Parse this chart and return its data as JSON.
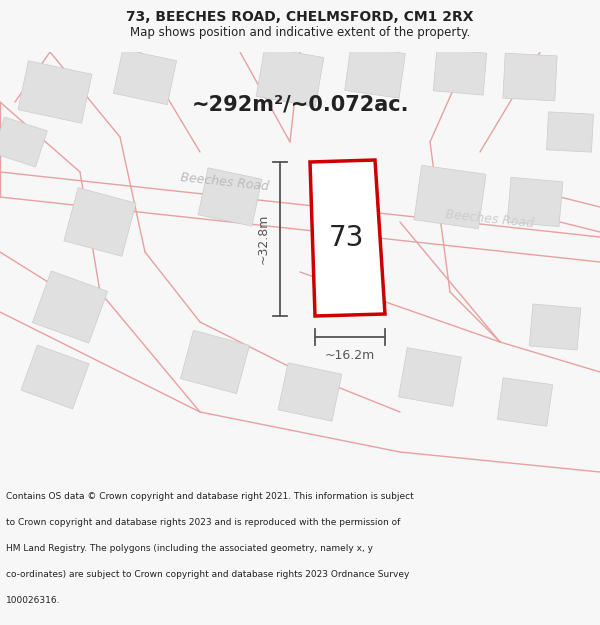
{
  "title": "73, BEECHES ROAD, CHELMSFORD, CM1 2RX",
  "subtitle": "Map shows position and indicative extent of the property.",
  "area_text": "~292m²/~0.072ac.",
  "property_number": "73",
  "dim_width": "~16.2m",
  "dim_height": "~32.8m",
  "road_label_left": "Beeches Road",
  "road_label_right": "Beeches Road",
  "footer_text": "Contains OS data © Crown copyright and database right 2021. This information is subject to Crown copyright and database rights 2023 and is reproduced with the permission of HM Land Registry. The polygons (including the associated geometry, namely x, y co-ordinates) are subject to Crown copyright and database rights 2023 Ordnance Survey 100026316.",
  "bg_color": "#f7f7f7",
  "map_bg_color": "#ffffff",
  "plot_color": "#cc0000",
  "road_line_color": "#e8a0a0",
  "building_fill": "#e0e0e0",
  "building_edge": "#cccccc",
  "dim_line_color": "#555555",
  "text_color": "#222222",
  "road_text_color": "#bbbbbb",
  "title_fontsize": 10,
  "subtitle_fontsize": 8.5,
  "area_fontsize": 15,
  "prop_num_fontsize": 20,
  "dim_fontsize": 9,
  "road_label_fontsize": 9,
  "footer_fontsize": 6.5
}
